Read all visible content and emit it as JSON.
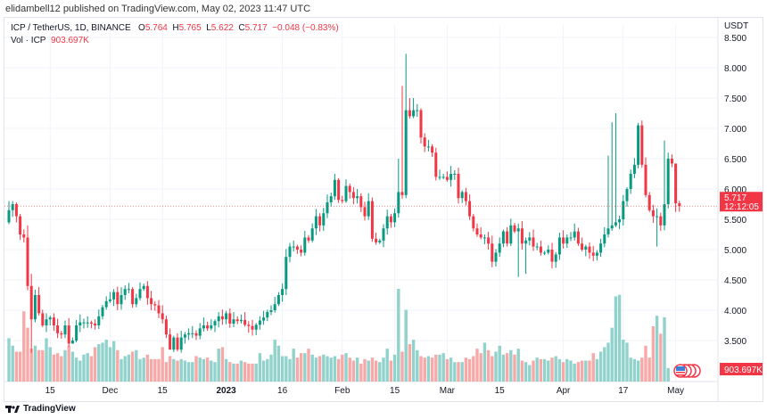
{
  "publisher_line": "elidambell12 published on TradingView.com, May 02, 2023 11:47 UTC",
  "legend": {
    "symbol": "ICP / TetherUS, 1D, BINANCE",
    "o_label": "O",
    "o": "5.764",
    "h_label": "H",
    "h": "5.765",
    "l_label": "L",
    "l": "5.622",
    "c_label": "C",
    "c": "5.717",
    "change": "−0.048 (−0.83%)",
    "vol_label": "Vol · ICP",
    "vol": "903.697K"
  },
  "footer": {
    "logo_text": "TradingView"
  },
  "colors": {
    "up": "#089981",
    "down": "#f23645",
    "vol_up": "#92d2cc",
    "vol_down": "#f7a9a7",
    "grid": "#f0f3fa"
  },
  "chart_data": {
    "type": "candlestick",
    "title": "ICP / TetherUS, 1D, BINANCE",
    "currency": "USDT",
    "start_date": "2022-11-04",
    "end_date": "2023-05-02",
    "ylim": [
      3.2,
      8.6
    ],
    "y_ticks": [
      "8.500",
      "8.000",
      "7.500",
      "7.000",
      "6.500",
      "6.000",
      "5.500",
      "5.000",
      "4.500",
      "4.000",
      "3.500"
    ],
    "x_ticks": [
      {
        "label": "15",
        "day": 11
      },
      {
        "label": "Dec",
        "day": 27
      },
      {
        "label": "15",
        "day": 41
      },
      {
        "label": "2023",
        "day": 58,
        "bold": true
      },
      {
        "label": "16",
        "day": 73
      },
      {
        "label": "Feb",
        "day": 89
      },
      {
        "label": "15",
        "day": 103
      },
      {
        "label": "Mar",
        "day": 117
      },
      {
        "label": "15",
        "day": 131
      },
      {
        "label": "Apr",
        "day": 148
      },
      {
        "label": "17",
        "day": 164
      },
      {
        "label": "May",
        "day": 178
      }
    ],
    "first_open": 5.45,
    "closes": [
      5.65,
      5.75,
      5.55,
      5.25,
      5.2,
      4.4,
      3.85,
      4.25,
      3.95,
      3.75,
      3.85,
      3.88,
      3.75,
      3.62,
      3.6,
      3.75,
      3.45,
      3.5,
      3.75,
      3.8,
      3.8,
      3.8,
      3.78,
      3.75,
      3.9,
      4.05,
      4.15,
      4.18,
      4.3,
      4.1,
      4.25,
      4.35,
      4.35,
      4.1,
      4.2,
      4.35,
      4.4,
      4.2,
      4.1,
      4.08,
      3.95,
      3.85,
      3.6,
      3.35,
      3.55,
      3.35,
      3.55,
      3.6,
      3.62,
      3.62,
      3.58,
      3.7,
      3.75,
      3.7,
      3.75,
      3.82,
      3.9,
      3.85,
      3.95,
      3.78,
      3.85,
      3.82,
      3.84,
      3.76,
      3.74,
      3.68,
      3.76,
      3.83,
      3.88,
      3.97,
      4.0,
      4.1,
      4.25,
      4.35,
      4.88,
      5.05,
      5.05,
      5.0,
      4.95,
      5.2,
      5.15,
      5.35,
      5.55,
      5.4,
      5.6,
      5.78,
      5.88,
      6.15,
      5.82,
      5.8,
      6.05,
      5.95,
      5.85,
      5.88,
      5.7,
      5.55,
      5.8,
      5.18,
      5.12,
      5.15,
      5.35,
      5.55,
      5.45,
      5.6,
      5.95,
      5.9,
      7.3,
      7.2,
      7.3,
      7.3,
      6.85,
      6.7,
      6.7,
      6.6,
      6.2,
      6.2,
      6.2,
      6.15,
      6.25,
      6.25,
      5.85,
      5.95,
      5.8,
      5.55,
      5.35,
      5.25,
      5.2,
      5.2,
      5.1,
      4.8,
      4.95,
      5.1,
      5.3,
      5.1,
      5.4,
      5.3,
      5.35,
      5.1,
      5.15,
      5.2,
      5.05,
      5.05,
      4.95,
      4.95,
      5.0,
      4.8,
      4.92,
      5.2,
      5.1,
      5.2,
      5.2,
      5.3,
      5.1,
      5.0,
      5.05,
      4.95,
      4.9,
      4.95,
      5.1,
      5.25,
      5.35,
      5.4,
      5.45,
      5.5,
      5.8,
      6.0,
      6.25,
      6.4,
      7.05,
      6.4,
      5.9,
      5.65,
      5.55,
      5.55,
      5.4,
      5.75,
      6.5,
      6.42,
      5.764,
      5.717
    ],
    "high_overrides": {
      "0": 5.8,
      "1": 5.8,
      "2": 5.78,
      "5": 5.4,
      "6": 4.6,
      "104": 6.5,
      "105": 7.7,
      "106": 8.23,
      "107": 7.5,
      "108": 7.5,
      "160": 6.55,
      "161": 7.1,
      "162": 7.25,
      "175": 6.8,
      "176": 6.6,
      "178": 5.765
    },
    "low_overrides": {
      "6": 3.3,
      "17": 3.45,
      "43": 3.4,
      "46": 3.3,
      "136": 4.55,
      "138": 4.6,
      "173": 5.05,
      "178": 5.622,
      "179": 5.622
    },
    "volumes_k": [
      2900,
      2400,
      2000,
      2000,
      4700,
      3600,
      2200,
      2400,
      2100,
      2100,
      2900,
      2300,
      1800,
      1900,
      1700,
      2100,
      2400,
      2000,
      1600,
      1400,
      1800,
      1900,
      1700,
      2300,
      2500,
      2600,
      2800,
      2300,
      2700,
      2100,
      1500,
      1700,
      1800,
      2000,
      2100,
      1500,
      1600,
      1800,
      1500,
      1500,
      1500,
      2300,
      1300,
      1700,
      1500,
      1400,
      1500,
      1400,
      1300,
      1300,
      1700,
      1600,
      1500,
      1600,
      1400,
      1300,
      2200,
      2300,
      1500,
      1300,
      1200,
      1200,
      1400,
      1300,
      1200,
      1200,
      1200,
      1900,
      1400,
      1500,
      1800,
      2800,
      2400,
      1700,
      1700,
      1500,
      2200,
      1600,
      1900,
      1900,
      2200,
      1800,
      1600,
      1700,
      1800,
      1700,
      1600,
      1700,
      1500,
      1800,
      1900,
      1600,
      1400,
      1600,
      1200,
      1500,
      1400,
      1600,
      1400,
      1300,
      1600,
      2200,
      1400,
      1800,
      6200,
      2000,
      4800,
      2500,
      2800,
      2100,
      1700,
      1600,
      1700,
      1600,
      1800,
      1800,
      1900,
      1500,
      1600,
      1300,
      1300,
      1300,
      1600,
      1500,
      1700,
      2200,
      1900,
      2600,
      2100,
      1700,
      2000,
      2400,
      1800,
      1900,
      2100,
      1800,
      2200,
      1400,
      1300,
      1100,
      1400,
      1600,
      1500,
      1500,
      1400,
      1600,
      1700,
      1500,
      1300,
      1500,
      1400,
      1200,
      1300,
      1400,
      1400,
      1400,
      1900,
      1500,
      2000,
      2300,
      2600,
      3600,
      5700,
      5800,
      2800,
      2600,
      1600,
      1500,
      1400,
      1600,
      2400,
      1600,
      3700,
      4400,
      3200,
      4300,
      903.697
    ],
    "last_price": "5.717",
    "countdown": "12:12:05",
    "last_volume": "903.697K"
  }
}
